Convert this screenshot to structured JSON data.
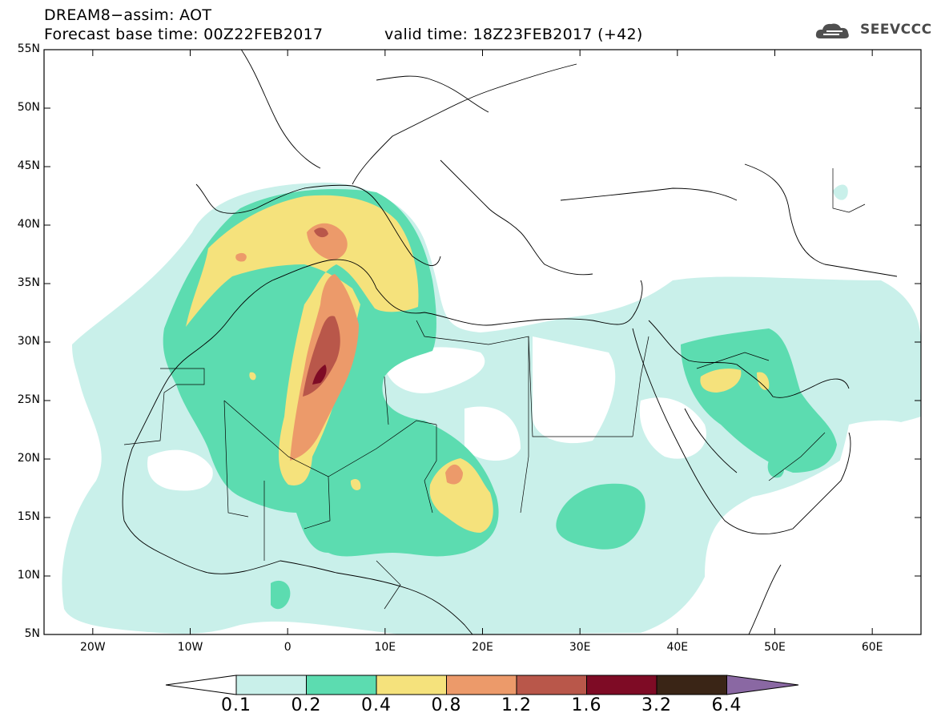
{
  "header": {
    "line1": "DREAM8−assim: AOT",
    "line2": "Forecast base time: 00Z22FEB2017",
    "valid": "valid time: 18Z23FEB2017 (+42)"
  },
  "logo": {
    "text": "SEEVCCC",
    "icon": "cloud-icon"
  },
  "map": {
    "lat_labels": [
      "55N",
      "50N",
      "45N",
      "40N",
      "35N",
      "30N",
      "25N",
      "20N",
      "15N",
      "10N",
      "5N"
    ],
    "lon_labels": [
      "20W",
      "10W",
      "0",
      "10E",
      "20E",
      "30E",
      "40E",
      "50E",
      "60E"
    ],
    "extent": {
      "lon": [
        -25,
        65
      ],
      "lat": [
        5,
        55
      ]
    }
  },
  "colorbar": {
    "labels": [
      "0.1",
      "0.2",
      "0.4",
      "0.8",
      "1.2",
      "1.6",
      "3.2",
      "6.4"
    ],
    "colors": [
      "#c9f0ea",
      "#5cdcb0",
      "#f5e27c",
      "#ec9a6a",
      "#b9574a",
      "#7e0b25",
      "#3a2516",
      "#8a68a3"
    ],
    "under_color": "#ffffff"
  }
}
